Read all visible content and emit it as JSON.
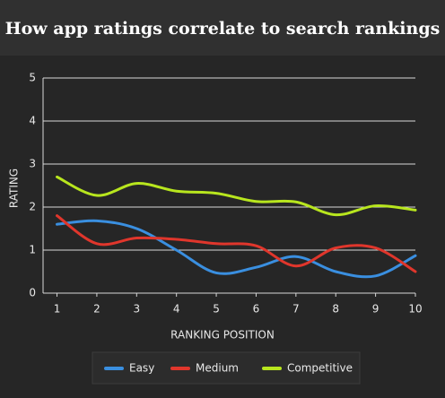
{
  "chart_data": {
    "type": "line",
    "title": "How app ratings correlate to search rankings",
    "x_label": "RANKING POSITION",
    "y_label": "RATING",
    "x": [
      1,
      2,
      3,
      4,
      5,
      6,
      7,
      8,
      9,
      10
    ],
    "series": [
      {
        "name": "Easy",
        "color": "#3a8fe0",
        "values": [
          1.6,
          1.68,
          1.5,
          1.0,
          0.47,
          0.6,
          0.85,
          0.5,
          0.4,
          0.87
        ]
      },
      {
        "name": "Medium",
        "color": "#e0362c",
        "values": [
          1.8,
          1.15,
          1.28,
          1.25,
          1.15,
          1.1,
          0.63,
          1.05,
          1.05,
          0.5
        ]
      },
      {
        "name": "Competitive",
        "color": "#b8e61e",
        "values": [
          2.7,
          2.27,
          2.55,
          2.37,
          2.32,
          2.13,
          2.12,
          1.82,
          2.03,
          1.93
        ]
      }
    ],
    "xlim": [
      0.65,
      10
    ],
    "xticks": [
      1,
      2,
      3,
      4,
      5,
      6,
      7,
      8,
      9,
      10
    ],
    "ylim": [
      0,
      5
    ],
    "yticks": [
      0,
      1,
      2,
      3,
      4,
      5
    ],
    "grid": true,
    "smooth": true,
    "legend": "bottom"
  }
}
